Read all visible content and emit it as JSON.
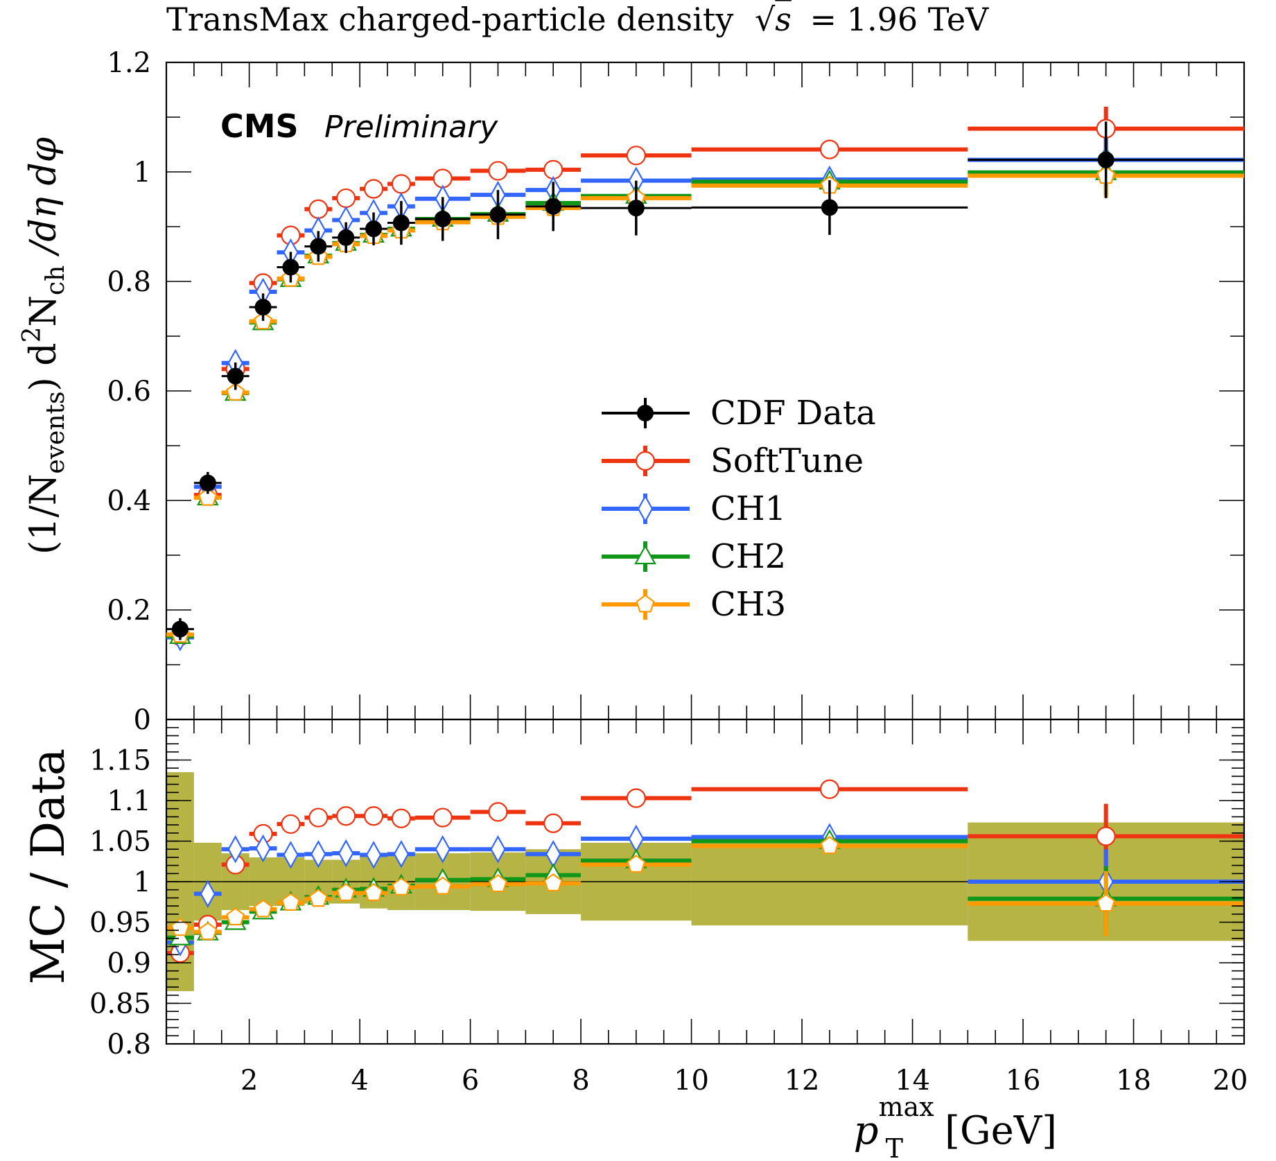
{
  "chart_data": {
    "type": "line",
    "title": "TransMax charged-particle density √s = 1.96 TeV",
    "title_main": "TransMax charged-particle density",
    "title_sqrt_s": "s",
    "title_energy": "= 1.96 TeV",
    "experiment_label": "CMS",
    "status_label": "Preliminary",
    "xlabel": "p_T^max [GeV]",
    "xlabel_symbol": "p",
    "xlabel_sup": "max",
    "xlabel_sub": "T",
    "xlabel_unit": "[GeV]",
    "xlim": [
      0.5,
      20
    ],
    "legend_placement": "center",
    "x_bins": [
      [
        0.5,
        1
      ],
      [
        1,
        1.5
      ],
      [
        1.5,
        2
      ],
      [
        2,
        2.5
      ],
      [
        2.5,
        3
      ],
      [
        3,
        3.5
      ],
      [
        3.5,
        4
      ],
      [
        4,
        4.5
      ],
      [
        4.5,
        5
      ],
      [
        5,
        6
      ],
      [
        6,
        7
      ],
      [
        7,
        8
      ],
      [
        8,
        10
      ],
      [
        10,
        15
      ],
      [
        15,
        20
      ]
    ],
    "top_panel": {
      "ylabel": "(1/N_events) d²N_ch /dη dφ",
      "ylabel_parts": {
        "open": "(1/N",
        "events": "events",
        "close": ") d",
        "sq": "2",
        "n": "N",
        "ch": "ch",
        "rest": " /dη dφ"
      },
      "ylim": [
        0,
        1.2
      ],
      "yticks": [
        0,
        0.2,
        0.4,
        0.6,
        0.8,
        1,
        1.2
      ],
      "ytick_labels": [
        "0",
        "0.2",
        "0.4",
        "0.6",
        "0.8",
        "1",
        "1.2"
      ],
      "series": [
        {
          "name": "CDF Data",
          "color": "#000000",
          "marker": "filled-circle",
          "values": [
            0.165,
            0.432,
            0.627,
            0.753,
            0.826,
            0.864,
            0.88,
            0.896,
            0.907,
            0.914,
            0.922,
            0.937,
            0.934,
            0.935,
            1.022
          ],
          "errors": [
            0.02,
            0.02,
            0.025,
            0.025,
            0.028,
            0.028,
            0.028,
            0.03,
            0.04,
            0.04,
            0.045,
            0.045,
            0.05,
            0.05,
            0.07
          ]
        },
        {
          "name": "SoftTune",
          "color": "#ee3311",
          "marker": "open-circle",
          "values": [
            0.152,
            0.41,
            0.64,
            0.797,
            0.884,
            0.932,
            0.952,
            0.969,
            0.978,
            0.988,
            1.002,
            1.004,
            1.03,
            1.041,
            1.079
          ],
          "errors": [
            0,
            0,
            0,
            0,
            0,
            0,
            0,
            0,
            0,
            0,
            0,
            0,
            0,
            0,
            0.04
          ]
        },
        {
          "name": "CH1",
          "color": "#3366ff",
          "marker": "open-diamond",
          "values": [
            0.15,
            0.425,
            0.651,
            0.781,
            0.853,
            0.893,
            0.912,
            0.925,
            0.937,
            0.951,
            0.958,
            0.967,
            0.984,
            0.986,
            1.022
          ],
          "errors": [
            0,
            0,
            0,
            0,
            0,
            0,
            0,
            0,
            0,
            0,
            0,
            0,
            0,
            0,
            0.04
          ]
        },
        {
          "name": "CH2",
          "color": "#109618",
          "marker": "open-triangle",
          "values": [
            0.152,
            0.405,
            0.596,
            0.725,
            0.804,
            0.847,
            0.87,
            0.885,
            0.896,
            0.914,
            0.923,
            0.943,
            0.956,
            0.982,
            0.999
          ],
          "errors": [
            0,
            0,
            0,
            0,
            0,
            0,
            0,
            0,
            0,
            0,
            0,
            0,
            0,
            0,
            0.04
          ]
        },
        {
          "name": "CH3",
          "color": "#ff9900",
          "marker": "open-pentagon",
          "values": [
            0.155,
            0.405,
            0.597,
            0.727,
            0.805,
            0.845,
            0.868,
            0.883,
            0.893,
            0.908,
            0.918,
            0.934,
            0.952,
            0.975,
            0.993
          ],
          "errors": [
            0,
            0,
            0,
            0,
            0,
            0,
            0,
            0,
            0,
            0,
            0,
            0,
            0,
            0,
            0.04
          ]
        }
      ]
    },
    "ratio_panel": {
      "ylabel": "MC / Data",
      "ylim": [
        0.8,
        1.2
      ],
      "yticks": [
        0.8,
        0.85,
        0.9,
        0.95,
        1,
        1.05,
        1.1,
        1.15
      ],
      "ytick_labels": [
        "0.8",
        "0.85",
        "0.9",
        "0.95",
        "1",
        "1.05",
        "1.1",
        "1.15"
      ],
      "data_band_color": "#b5b445",
      "data_band_halfwidth": [
        0.135,
        0.048,
        0.035,
        0.03,
        0.03,
        0.027,
        0.027,
        0.033,
        0.035,
        0.035,
        0.036,
        0.04,
        0.048,
        0.054,
        0.073
      ],
      "series": [
        {
          "name": "SoftTune",
          "color": "#ee3311",
          "marker": "open-circle",
          "values": [
            0.912,
            0.947,
            1.021,
            1.059,
            1.071,
            1.079,
            1.081,
            1.081,
            1.078,
            1.079,
            1.086,
            1.072,
            1.103,
            1.114,
            1.056
          ],
          "errors": [
            0,
            0,
            0,
            0,
            0,
            0,
            0,
            0,
            0,
            0,
            0,
            0,
            0,
            0,
            0.04
          ]
        },
        {
          "name": "CH1",
          "color": "#3366ff",
          "marker": "open-diamond",
          "values": [
            0.925,
            0.985,
            1.04,
            1.041,
            1.033,
            1.034,
            1.035,
            1.033,
            1.034,
            1.04,
            1.04,
            1.034,
            1.053,
            1.055,
            1.0
          ],
          "errors": [
            0,
            0,
            0,
            0,
            0,
            0,
            0,
            0,
            0,
            0,
            0,
            0,
            0,
            0,
            0.04
          ]
        },
        {
          "name": "CH2",
          "color": "#109618",
          "marker": "open-triangle",
          "values": [
            0.931,
            0.937,
            0.95,
            0.963,
            0.974,
            0.981,
            0.99,
            0.991,
            0.995,
            1.002,
            1.003,
            1.008,
            1.026,
            1.05,
            0.979
          ],
          "errors": [
            0,
            0,
            0,
            0,
            0,
            0,
            0,
            0,
            0,
            0,
            0,
            0,
            0,
            0,
            0.04
          ]
        },
        {
          "name": "CH3",
          "color": "#ff9900",
          "marker": "open-pentagon",
          "values": [
            0.943,
            0.938,
            0.956,
            0.966,
            0.974,
            0.979,
            0.986,
            0.986,
            0.993,
            0.994,
            0.997,
            0.998,
            1.021,
            1.044,
            0.973
          ],
          "errors": [
            0,
            0,
            0,
            0,
            0,
            0,
            0,
            0,
            0,
            0,
            0,
            0,
            0,
            0,
            0.04
          ]
        }
      ]
    },
    "xticks_major": [
      2,
      4,
      6,
      8,
      10,
      12,
      14,
      16,
      18,
      20
    ],
    "xtick_labels": [
      "2",
      "4",
      "6",
      "8",
      "10",
      "12",
      "14",
      "16",
      "18",
      "20"
    ]
  }
}
